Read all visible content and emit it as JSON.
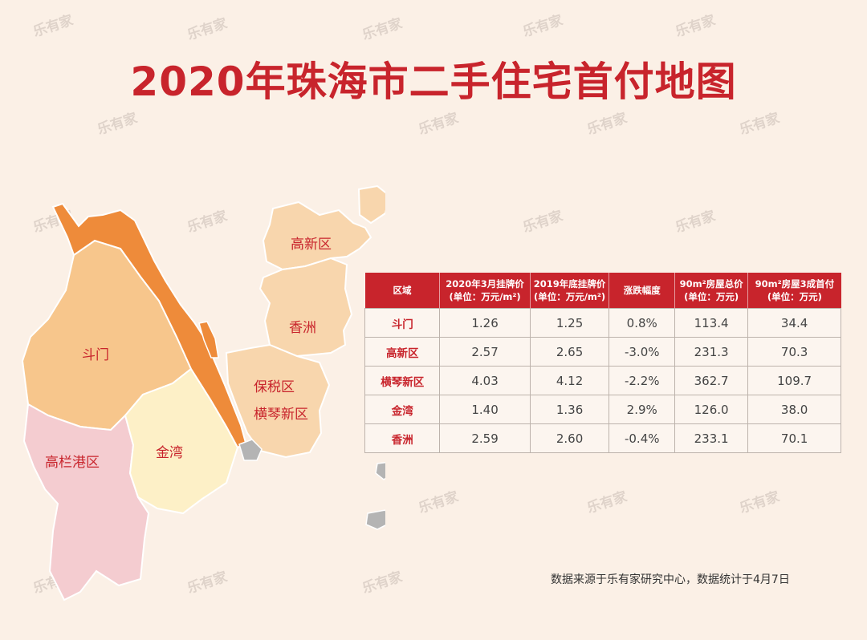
{
  "title": "2020年珠海市二手住宅首付地图",
  "watermark": "乐有家",
  "map": {
    "regions": [
      {
        "name": "斗门",
        "color": "#f7c68c"
      },
      {
        "name": "高新区",
        "color": "#f8d6ad"
      },
      {
        "name": "香洲",
        "color": "#f8d6ad"
      },
      {
        "name": "保税区",
        "color": "#f8d6ad"
      },
      {
        "name": "横琴新区",
        "color": "#f8d6ad"
      },
      {
        "name": "金湾",
        "color": "#fdf0c7"
      },
      {
        "name": "高栏港区",
        "color": "#f4ccd0"
      }
    ],
    "accent_strip_color": "#ee8b3a",
    "island_color": "#b4b4b4"
  },
  "table": {
    "headers": [
      {
        "line1": "区域",
        "line2": ""
      },
      {
        "line1": "2020年3月挂牌价",
        "line2": "(单位：万元/m²)"
      },
      {
        "line1": "2019年底挂牌价",
        "line2": "(单位：万元/m²)"
      },
      {
        "line1": "涨跌幅度",
        "line2": ""
      },
      {
        "line1": "90m²房屋总价",
        "line2": "(单位：万元)"
      },
      {
        "line1": "90m²房屋3成首付",
        "line2": "(单位：万元)"
      }
    ],
    "rows": [
      [
        "斗门",
        "1.26",
        "1.25",
        "0.8%",
        "113.4",
        "34.4"
      ],
      [
        "高新区",
        "2.57",
        "2.65",
        "-3.0%",
        "231.3",
        "70.3"
      ],
      [
        "横琴新区",
        "4.03",
        "4.12",
        "-2.2%",
        "362.7",
        "109.7"
      ],
      [
        "金湾",
        "1.40",
        "1.36",
        "2.9%",
        "126.0",
        "38.0"
      ],
      [
        "香洲",
        "2.59",
        "2.60",
        "-0.4%",
        "233.1",
        "70.1"
      ]
    ]
  },
  "footnote": "数据来源于乐有家研究中心，数据统计于4月7日",
  "colors": {
    "accent_red": "#c8242c",
    "background": "#fbf0e6"
  }
}
